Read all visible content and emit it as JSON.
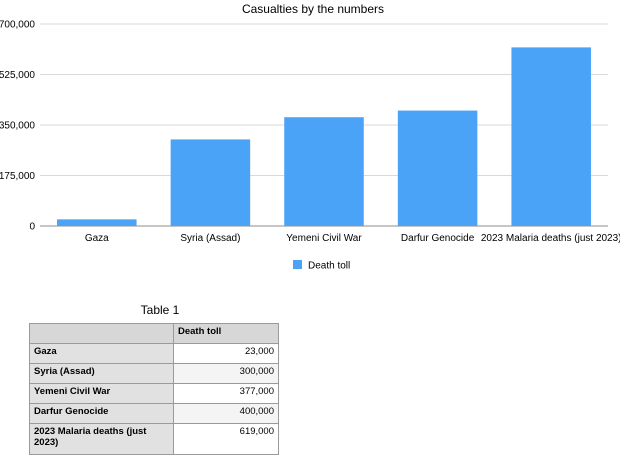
{
  "chart_data": {
    "type": "bar",
    "title": "Casualties by the numbers",
    "categories": [
      "Gaza",
      "Syria (Assad)",
      "Yemeni Civil War",
      "Darfur Genocide",
      "2023 Malaria deaths (just 2023)"
    ],
    "series": [
      {
        "name": "Death toll",
        "values": [
          23000,
          300000,
          377000,
          400000,
          619000
        ],
        "color": "#4aa3f7"
      }
    ],
    "yticks": [
      "0",
      "175,000",
      "350,000",
      "525,000",
      "700,000"
    ],
    "ylim": [
      0,
      700000
    ],
    "grid": true,
    "legend": "bottom"
  },
  "table": {
    "title": "Table 1",
    "header": [
      "",
      "Death toll"
    ],
    "rows": [
      {
        "label": "Gaza",
        "value": "23,000"
      },
      {
        "label": "Syria (Assad)",
        "value": "300,000"
      },
      {
        "label": "Yemeni Civil War",
        "value": "377,000"
      },
      {
        "label": "Darfur Genocide",
        "value": "400,000"
      },
      {
        "label": "2023 Malaria deaths (just 2023)",
        "value": "619,000"
      }
    ]
  }
}
